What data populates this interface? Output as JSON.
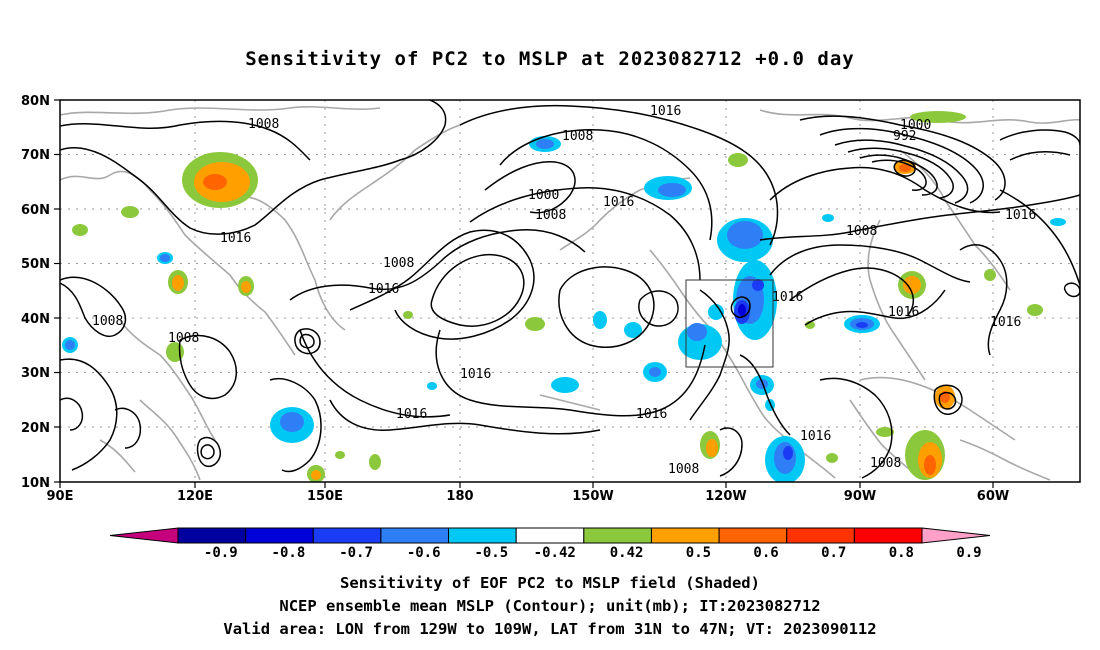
{
  "title": "Sensitivity of PC2 to MSLP at 2023082712 +0.0 day",
  "lat_labels": [
    "80N",
    "70N",
    "60N",
    "50N",
    "40N",
    "30N",
    "20N",
    "10N"
  ],
  "lon_labels": [
    "90E",
    "120E",
    "150E",
    "180",
    "150W",
    "120W",
    "90W",
    "60W"
  ],
  "contour_labels": [
    {
      "text": "1008",
      "id": "c1"
    },
    {
      "text": "1016",
      "id": "c2"
    },
    {
      "text": "1008",
      "id": "c3"
    },
    {
      "text": "1000",
      "id": "c4"
    },
    {
      "text": "1008",
      "id": "c5"
    },
    {
      "text": "1016",
      "id": "c6"
    },
    {
      "text": "1000",
      "id": "c7"
    },
    {
      "text": "992",
      "id": "c8"
    },
    {
      "text": "1016",
      "id": "c9"
    },
    {
      "text": "1008",
      "id": "c10"
    },
    {
      "text": "1016",
      "id": "c11"
    },
    {
      "text": "1008",
      "id": "c12"
    },
    {
      "text": "1016",
      "id": "c13"
    },
    {
      "text": "1008",
      "id": "c14"
    },
    {
      "text": "1008",
      "id": "c15"
    },
    {
      "text": "1016",
      "id": "c16"
    },
    {
      "text": "1016",
      "id": "c17"
    },
    {
      "text": "1016",
      "id": "c18"
    },
    {
      "text": "1016",
      "id": "c19"
    },
    {
      "text": "1016",
      "id": "c20"
    },
    {
      "text": "1016",
      "id": "c21"
    },
    {
      "text": "1016",
      "id": "c22"
    },
    {
      "text": "1008",
      "id": "c23"
    },
    {
      "text": "1008",
      "id": "c24"
    }
  ],
  "colorbar": {
    "labels": [
      "-0.9",
      "-0.8",
      "-0.7",
      "-0.6",
      "-0.5",
      "-0.42",
      "0.42",
      "0.5",
      "0.6",
      "0.7",
      "0.8",
      "0.9"
    ],
    "colors": [
      "#c4007d",
      "#0000a0",
      "#0000d8",
      "#1a3cf5",
      "#2e7ff5",
      "#00c8f5",
      "#ffffff",
      "#8cc83c",
      "#ffa000",
      "#ff6400",
      "#ff3200",
      "#ff0000",
      "#ffa0c8"
    ]
  },
  "captions": {
    "line1": "Sensitivity of EOF PC2 to MSLP field (Shaded)",
    "line2": "NCEP ensemble mean MSLP (Contour); unit(mb); IT:2023082712",
    "line3": "Valid area: LON from 129W to 109W, LAT from 31N to 47N; VT: 2023090112"
  }
}
